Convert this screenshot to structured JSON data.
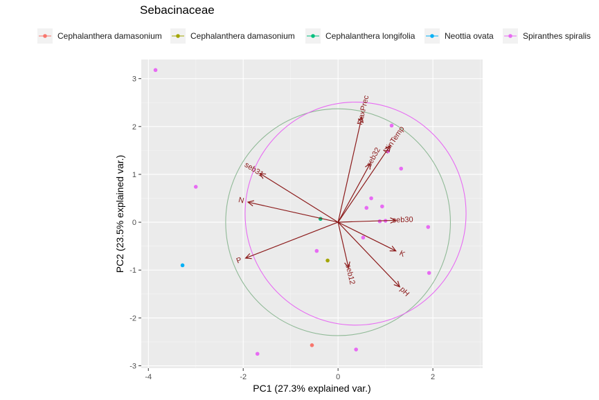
{
  "chart_data": {
    "type": "scatter",
    "title": "Sebacinaceae",
    "xlabel": "PC1 (27.3% explained var.)",
    "ylabel": "PC2 (23.5% explained var.)",
    "xlim": [
      -4.15,
      3.05
    ],
    "ylim": [
      -3.05,
      3.4
    ],
    "x_ticks": [
      -4,
      -2,
      0,
      2
    ],
    "y_ticks": [
      -3,
      -2,
      -1,
      0,
      1,
      2,
      3
    ],
    "grid": true,
    "legend_position": "top",
    "series": [
      {
        "name": "Cephalanthera damasonium",
        "color": "#F8766D",
        "points": [
          [
            -0.55,
            -2.57
          ]
        ]
      },
      {
        "name": "Cephalanthera damasonium",
        "color": "#A3A500",
        "points": [
          [
            -0.22,
            -0.8
          ]
        ]
      },
      {
        "name": "Cephalanthera longifolia",
        "color": "#00BF7D",
        "points": [
          [
            -0.37,
            0.07
          ]
        ]
      },
      {
        "name": "Neottia ovata",
        "color": "#00B0F6",
        "points": [
          [
            -3.28,
            -0.9
          ]
        ]
      },
      {
        "name": "Spiranthes spiralis",
        "color": "#E76BF3",
        "points": [
          [
            -3.85,
            3.18
          ],
          [
            -3.0,
            0.74
          ],
          [
            -1.7,
            -2.75
          ],
          [
            -0.45,
            -0.6
          ],
          [
            0.38,
            -2.66
          ],
          [
            0.53,
            -0.32
          ],
          [
            0.6,
            0.3
          ],
          [
            0.7,
            0.5
          ],
          [
            0.88,
            0.02
          ],
          [
            0.93,
            0.33
          ],
          [
            1.0,
            0.03
          ],
          [
            1.05,
            1.48
          ],
          [
            1.13,
            2.02
          ],
          [
            1.33,
            1.12
          ],
          [
            1.9,
            -0.1
          ],
          [
            1.92,
            -1.06
          ]
        ]
      }
    ],
    "loadings": [
      {
        "name": "MaxPrec",
        "x": 0.5,
        "y": 2.2
      },
      {
        "name": "MinTemp",
        "x": 1.1,
        "y": 1.6
      },
      {
        "name": "seb32",
        "x": 0.68,
        "y": 1.23
      },
      {
        "name": "seb31",
        "x": -1.65,
        "y": 1.02
      },
      {
        "name": "N",
        "x": -1.9,
        "y": 0.42
      },
      {
        "name": "P",
        "x": -1.95,
        "y": -0.75
      },
      {
        "name": "seb30",
        "x": 1.22,
        "y": 0.04
      },
      {
        "name": "K",
        "x": 1.22,
        "y": -0.6
      },
      {
        "name": "seb12",
        "x": 0.22,
        "y": -0.95
      },
      {
        "name": "pH",
        "x": 1.3,
        "y": -1.35
      }
    ],
    "circles": [
      {
        "color": "#8FB996",
        "cx": 0.0,
        "cy": 0.0,
        "r": 2.37
      },
      {
        "color": "#E76BF3",
        "cx": 0.37,
        "cy": 0.18,
        "r": 2.33
      }
    ]
  }
}
